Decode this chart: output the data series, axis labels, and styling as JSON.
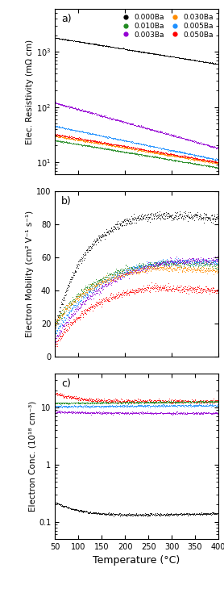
{
  "temp_range": [
    50,
    400
  ],
  "colors": {
    "0.000Ba": "#000000",
    "0.003Ba": "#9400D3",
    "0.005Ba": "#1E90FF",
    "0.010Ba": "#228B22",
    "0.030Ba": "#FF8C00",
    "0.050Ba": "#FF0000"
  },
  "panel_labels": [
    "a)",
    "b)",
    "c)"
  ],
  "ylabel_a": "Elec. Resistivity (mΩ cm)",
  "ylabel_b": "Electron Mobility (cm² V⁻¹ s⁻¹)",
  "ylabel_c": "Electron Conc. (10¹⁸ cm⁻³)",
  "xlabel": "Temperature (°C)"
}
